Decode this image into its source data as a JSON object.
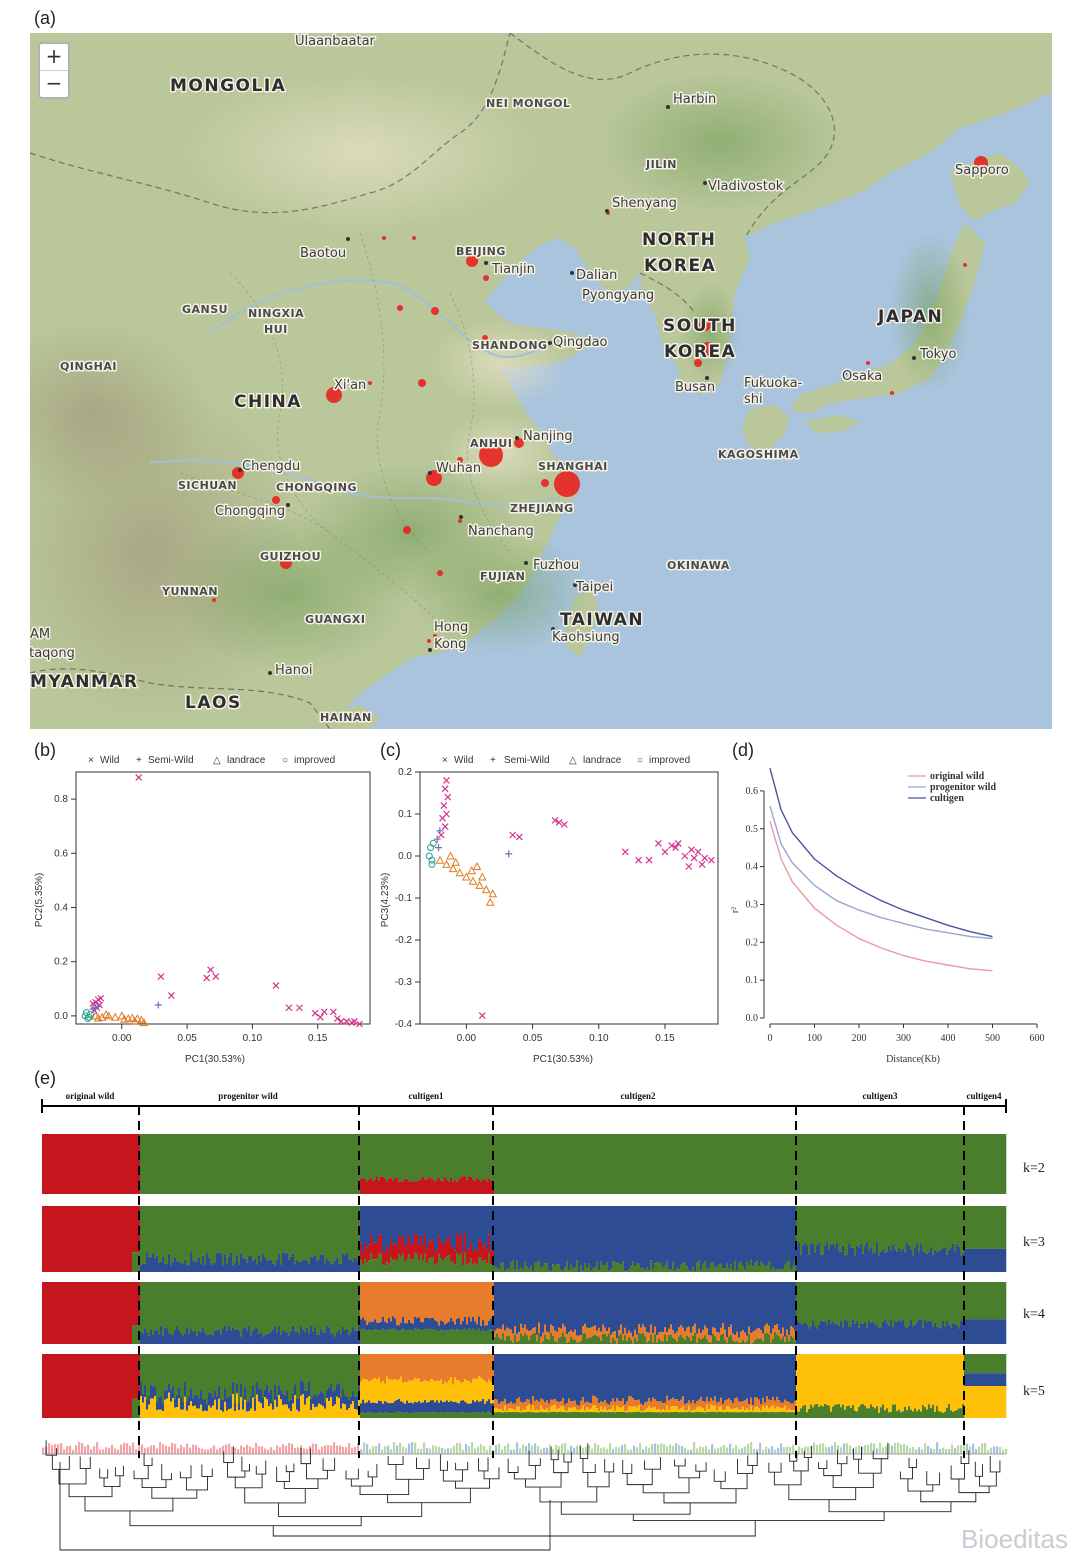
{
  "panels": {
    "a": "(a)",
    "b": "(b)",
    "c": "(c)",
    "d": "(d)",
    "e": "(e)"
  },
  "map": {
    "zoom_in": "+",
    "zoom_out": "−",
    "labels": {
      "ulaanbaatar": "Ulaanbaatar",
      "mongolia": "MONGOLIA",
      "nei_mongol": "NEI MONGOL",
      "harbin": "Harbin",
      "jilin": "JILIN",
      "vladivostok": "Vladivostok",
      "sapporo": "Sapporo",
      "shenyang": "Shenyang",
      "north_korea_1": "NORTH",
      "north_korea_2": "KOREA",
      "baotou": "Baotou",
      "beijing": "BEIJING",
      "tianjin": "Tianjin",
      "dalian": "Dalian",
      "pyongyang": "Pyongyang",
      "gansu": "GANSU",
      "ningxia_1": "NINGXIA",
      "ningxia_2": "HUI",
      "south_korea_1": "SOUTH",
      "south_korea_2": "KOREA",
      "japan": "JAPAN",
      "shandong": "SHANDONG",
      "qingdao": "Qingdao",
      "qinghai": "QINGHAI",
      "tokyo": "Tokyo",
      "xian": "Xi'an",
      "china": "CHINA",
      "busan": "Busan",
      "osaka": "Osaka",
      "fukuoka_1": "Fukuoka-",
      "fukuoka_2": "shi",
      "nanjing": "Nanjing",
      "anhui": "ANHUI",
      "kagoshima": "KAGOSHIMA",
      "chengdu": "Chengdu",
      "wuhan": "Wuhan",
      "shanghai": "SHANGHAI",
      "sichuan": "SICHUAN",
      "chongqing_prov": "CHONGQING",
      "chongqing": "Chongqing",
      "zhejiang": "ZHEJIANG",
      "nanchang": "Nanchang",
      "guizhou": "GUIZHOU",
      "fuzhou": "Fuzhou",
      "okinawa": "OKINAWA",
      "fujian": "FUJIAN",
      "taipei": "Taipei",
      "yunnan": "YUNNAN",
      "taiwan": "TAIWAN",
      "kaohsiung": "Kaohsiung",
      "guangxi": "GUANGXI",
      "hongkong_1": "Hong",
      "hongkong_2": "Kong",
      "am": "AM",
      "taqong": "ttaqong",
      "hanoi": "Hanoi",
      "myanmar": "MYANMAR",
      "laos": "LAOS",
      "hainan": "HAINAN"
    },
    "colors": {
      "land": "#b9c79a",
      "water": "#a9c4dc",
      "sample": "#e8221e"
    }
  },
  "legend": {
    "wild": "Wild",
    "semi_wild": "Semi-Wild",
    "landrace": "landrace",
    "improved": "improved"
  },
  "series_colors": {
    "wild": "#d6338a",
    "semi_wild": "#8063b8",
    "landrace": "#e07b24",
    "improved": "#2a9d8f"
  },
  "chart_data": [
    {
      "type": "scatter",
      "panel": "b",
      "xlabel": "PC1(30.53%)",
      "ylabel": "PC2(5.35%)",
      "xlim": [
        -0.035,
        0.19
      ],
      "ylim": [
        -0.03,
        0.9
      ],
      "xticks": [
        "0.00",
        "0.05",
        "0.10",
        "0.15"
      ],
      "yticks": [
        "0.0",
        "0.2",
        "0.4",
        "0.6",
        "0.8"
      ],
      "series": [
        {
          "name": "Wild",
          "points": [
            [
              0.013,
              0.88
            ],
            [
              0.03,
              0.145
            ],
            [
              0.038,
              0.075
            ],
            [
              0.068,
              0.17
            ],
            [
              0.072,
              0.145
            ],
            [
              0.065,
              0.14
            ],
            [
              0.118,
              0.112
            ],
            [
              0.128,
              0.03
            ],
            [
              0.136,
              0.03
            ],
            [
              0.148,
              0.01
            ],
            [
              0.155,
              0.015
            ],
            [
              0.152,
              -0.005
            ],
            [
              0.162,
              0.015
            ],
            [
              0.165,
              -0.01
            ],
            [
              0.168,
              -0.02
            ],
            [
              0.172,
              -0.02
            ],
            [
              0.176,
              -0.025
            ],
            [
              0.178,
              -0.02
            ],
            [
              0.182,
              -0.03
            ],
            [
              -0.02,
              0.05
            ],
            [
              -0.018,
              0.06
            ],
            [
              -0.017,
              0.04
            ],
            [
              -0.019,
              0.03
            ],
            [
              -0.021,
              0.02
            ],
            [
              -0.016,
              0.065
            ],
            [
              -0.022,
              0.045
            ]
          ]
        },
        {
          "name": "Semi-Wild",
          "points": [
            [
              0.028,
              0.04
            ],
            [
              -0.018,
              0.035
            ],
            [
              -0.02,
              0.03
            ],
            [
              -0.022,
              0.025
            ]
          ]
        },
        {
          "name": "landrace",
          "points": [
            [
              -0.02,
              0.0
            ],
            [
              -0.015,
              -0.005
            ],
            [
              -0.01,
              0.0
            ],
            [
              -0.005,
              -0.005
            ],
            [
              0.0,
              0.0
            ],
            [
              0.005,
              -0.01
            ],
            [
              0.01,
              -0.02
            ],
            [
              0.015,
              -0.015
            ],
            [
              0.017,
              -0.025
            ],
            [
              -0.012,
              0.005
            ],
            [
              0.002,
              -0.012
            ],
            [
              0.008,
              -0.008
            ],
            [
              -0.018,
              -0.008
            ],
            [
              0.012,
              -0.01
            ]
          ]
        },
        {
          "name": "improved",
          "points": [
            [
              -0.028,
              0.0
            ],
            [
              -0.026,
              -0.01
            ],
            [
              -0.024,
              0.005
            ],
            [
              -0.027,
              0.012
            ],
            [
              -0.025,
              -0.005
            ]
          ]
        }
      ]
    },
    {
      "type": "scatter",
      "panel": "c",
      "xlabel": "PC1(30.53%)",
      "ylabel": "PC3(4.23%)",
      "xlim": [
        -0.035,
        0.19
      ],
      "ylim": [
        -0.4,
        0.2
      ],
      "xticks": [
        "0.00",
        "0.05",
        "0.10",
        "0.15"
      ],
      "yticks": [
        "-0.4",
        "-0.3",
        "-0.2",
        "-0.1",
        "0.0",
        "0.1",
        "0.2"
      ],
      "series": [
        {
          "name": "Wild",
          "points": [
            [
              -0.015,
              0.18
            ],
            [
              -0.016,
              0.16
            ],
            [
              -0.014,
              0.14
            ],
            [
              -0.017,
              0.12
            ],
            [
              -0.015,
              0.1
            ],
            [
              -0.018,
              0.09
            ],
            [
              -0.016,
              0.07
            ],
            [
              -0.019,
              0.05
            ],
            [
              0.035,
              0.05
            ],
            [
              0.04,
              0.045
            ],
            [
              0.067,
              0.085
            ],
            [
              0.07,
              0.08
            ],
            [
              0.074,
              0.075
            ],
            [
              0.012,
              -0.38
            ],
            [
              0.12,
              0.01
            ],
            [
              0.13,
              -0.01
            ],
            [
              0.138,
              -0.01
            ],
            [
              0.145,
              0.03
            ],
            [
              0.15,
              0.01
            ],
            [
              0.155,
              0.025
            ],
            [
              0.16,
              0.03
            ],
            [
              0.165,
              0.0
            ],
            [
              0.17,
              0.015
            ],
            [
              0.172,
              -0.005
            ],
            [
              0.175,
              0.01
            ],
            [
              0.178,
              -0.02
            ],
            [
              0.18,
              -0.005
            ],
            [
              0.185,
              -0.01
            ],
            [
              0.168,
              -0.025
            ],
            [
              0.158,
              0.02
            ]
          ]
        },
        {
          "name": "Semi-Wild",
          "points": [
            [
              0.032,
              0.005
            ],
            [
              -0.02,
              0.06
            ],
            [
              -0.022,
              0.04
            ],
            [
              -0.021,
              0.02
            ]
          ]
        },
        {
          "name": "landrace",
          "points": [
            [
              -0.02,
              -0.01
            ],
            [
              -0.015,
              -0.02
            ],
            [
              -0.01,
              -0.03
            ],
            [
              -0.005,
              -0.04
            ],
            [
              0.0,
              -0.05
            ],
            [
              0.005,
              -0.06
            ],
            [
              0.01,
              -0.07
            ],
            [
              0.015,
              -0.08
            ],
            [
              0.02,
              -0.09
            ],
            [
              0.018,
              -0.11
            ],
            [
              -0.008,
              -0.015
            ],
            [
              0.004,
              -0.035
            ],
            [
              0.012,
              -0.05
            ],
            [
              -0.012,
              0.0
            ],
            [
              0.008,
              -0.025
            ]
          ]
        },
        {
          "name": "improved",
          "points": [
            [
              -0.028,
              0.0
            ],
            [
              -0.026,
              -0.01
            ],
            [
              -0.027,
              0.02
            ],
            [
              -0.025,
              0.03
            ],
            [
              -0.026,
              -0.02
            ]
          ]
        }
      ]
    },
    {
      "type": "line",
      "panel": "d",
      "xlabel": "Distance(Kb)",
      "ylabel": "r²",
      "xlim": [
        0,
        600
      ],
      "ylim": [
        0,
        0.65
      ],
      "xticks": [
        "0",
        "100",
        "200",
        "300",
        "400",
        "500",
        "600"
      ],
      "yticks": [
        "0.0",
        "0.1",
        "0.2",
        "0.3",
        "0.4",
        "0.5",
        "0.6"
      ],
      "legend": [
        "original wild",
        "progenitor wild",
        "cultigen"
      ],
      "series": [
        {
          "name": "original wild",
          "color": "#e89aa6",
          "x": [
            0,
            25,
            50,
            100,
            150,
            200,
            250,
            300,
            350,
            400,
            450,
            500
          ],
          "y": [
            0.52,
            0.42,
            0.36,
            0.29,
            0.245,
            0.21,
            0.185,
            0.165,
            0.15,
            0.14,
            0.13,
            0.125
          ]
        },
        {
          "name": "progenitor wild",
          "color": "#9aa6cf",
          "x": [
            0,
            25,
            50,
            100,
            150,
            200,
            250,
            300,
            350,
            400,
            450,
            500
          ],
          "y": [
            0.56,
            0.46,
            0.41,
            0.35,
            0.31,
            0.285,
            0.265,
            0.25,
            0.235,
            0.225,
            0.215,
            0.21
          ]
        },
        {
          "name": "cultigen",
          "color": "#4a55a2",
          "x": [
            0,
            25,
            50,
            100,
            150,
            200,
            250,
            300,
            350,
            400,
            450,
            500
          ],
          "y": [
            0.66,
            0.55,
            0.49,
            0.42,
            0.375,
            0.34,
            0.31,
            0.285,
            0.265,
            0.245,
            0.228,
            0.215
          ]
        }
      ]
    }
  ],
  "structure": {
    "groups": [
      "original wild",
      "progenitor wild",
      "cultigen1",
      "cultigen2",
      "cultigen3",
      "cultigen4"
    ],
    "k_labels": [
      "k=2",
      "k=3",
      "k=4",
      "k=5"
    ],
    "colors": {
      "red": "#c5161d",
      "green": "#4b7e2c",
      "blue": "#2e4c93",
      "orange": "#e77d2c",
      "yellow": "#ffc107"
    },
    "dendrogram_tip_colors": [
      "#f2a4a8",
      "#bcd8a8",
      "#a6c0e6"
    ]
  },
  "watermark": "Bioeditas"
}
